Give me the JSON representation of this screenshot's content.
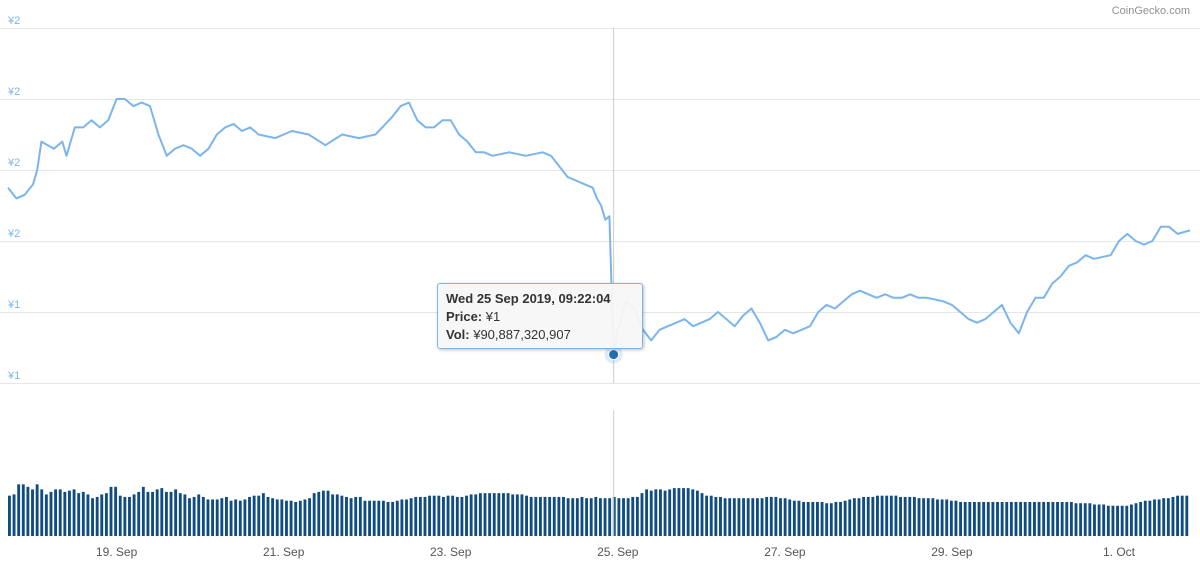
{
  "credit": "CoinGecko.com",
  "tooltip": {
    "date": "Wed 25 Sep 2019, 09:22:04",
    "price_label": "Price:",
    "price_value": "¥1",
    "vol_label": "Vol:",
    "vol_value": "¥90,887,320,907"
  },
  "colors": {
    "price_line": "#7cb5ec",
    "volume_bar": "#0f4c81",
    "axis_text": "#7cb5ec",
    "grid": "#e6e6e6",
    "crosshair": "#cccccc",
    "marker": "#1f6fb2"
  },
  "chart_data": {
    "type": "line",
    "y_tick_labels": [
      "¥2",
      "¥2",
      "¥2",
      "¥2",
      "¥1",
      "¥1"
    ],
    "x_tick_labels": [
      "19. Sep",
      "21. Sep",
      "23. Sep",
      "25. Sep",
      "27. Sep",
      "29. Sep",
      "1. Oct"
    ],
    "x_tick_days": [
      1.3,
      3.3,
      5.3,
      7.3,
      9.3,
      11.3,
      13.3
    ],
    "x_range_days": [
      0,
      14.15
    ],
    "price_ylim": [
      1.0,
      2.0
    ],
    "volume_ylim": [
      0,
      100
    ],
    "price": [
      [
        0.0,
        1.55
      ],
      [
        0.1,
        1.52
      ],
      [
        0.2,
        1.53
      ],
      [
        0.3,
        1.56
      ],
      [
        0.35,
        1.6
      ],
      [
        0.4,
        1.68
      ],
      [
        0.55,
        1.66
      ],
      [
        0.65,
        1.68
      ],
      [
        0.7,
        1.64
      ],
      [
        0.8,
        1.72
      ],
      [
        0.9,
        1.72
      ],
      [
        1.0,
        1.74
      ],
      [
        1.1,
        1.72
      ],
      [
        1.2,
        1.74
      ],
      [
        1.3,
        1.8
      ],
      [
        1.4,
        1.8
      ],
      [
        1.5,
        1.78
      ],
      [
        1.6,
        1.79
      ],
      [
        1.7,
        1.78
      ],
      [
        1.8,
        1.7
      ],
      [
        1.9,
        1.64
      ],
      [
        2.0,
        1.66
      ],
      [
        2.1,
        1.67
      ],
      [
        2.2,
        1.66
      ],
      [
        2.3,
        1.64
      ],
      [
        2.4,
        1.66
      ],
      [
        2.5,
        1.7
      ],
      [
        2.6,
        1.72
      ],
      [
        2.7,
        1.73
      ],
      [
        2.8,
        1.71
      ],
      [
        2.9,
        1.72
      ],
      [
        3.0,
        1.7
      ],
      [
        3.2,
        1.69
      ],
      [
        3.4,
        1.71
      ],
      [
        3.6,
        1.7
      ],
      [
        3.8,
        1.67
      ],
      [
        4.0,
        1.7
      ],
      [
        4.2,
        1.69
      ],
      [
        4.4,
        1.7
      ],
      [
        4.6,
        1.75
      ],
      [
        4.7,
        1.78
      ],
      [
        4.8,
        1.79
      ],
      [
        4.9,
        1.74
      ],
      [
        5.0,
        1.72
      ],
      [
        5.1,
        1.72
      ],
      [
        5.2,
        1.74
      ],
      [
        5.3,
        1.74
      ],
      [
        5.4,
        1.7
      ],
      [
        5.5,
        1.68
      ],
      [
        5.6,
        1.65
      ],
      [
        5.7,
        1.65
      ],
      [
        5.8,
        1.64
      ],
      [
        6.0,
        1.65
      ],
      [
        6.2,
        1.64
      ],
      [
        6.4,
        1.65
      ],
      [
        6.5,
        1.64
      ],
      [
        6.6,
        1.61
      ],
      [
        6.7,
        1.58
      ],
      [
        6.8,
        1.57
      ],
      [
        6.9,
        1.56
      ],
      [
        7.0,
        1.55
      ],
      [
        7.05,
        1.52
      ],
      [
        7.1,
        1.5
      ],
      [
        7.15,
        1.46
      ],
      [
        7.2,
        1.47
      ],
      [
        7.25,
        1.08
      ],
      [
        7.3,
        1.15
      ],
      [
        7.4,
        1.23
      ],
      [
        7.5,
        1.21
      ],
      [
        7.6,
        1.15
      ],
      [
        7.7,
        1.12
      ],
      [
        7.8,
        1.15
      ],
      [
        7.9,
        1.16
      ],
      [
        8.0,
        1.17
      ],
      [
        8.1,
        1.18
      ],
      [
        8.2,
        1.16
      ],
      [
        8.3,
        1.17
      ],
      [
        8.4,
        1.18
      ],
      [
        8.5,
        1.2
      ],
      [
        8.6,
        1.18
      ],
      [
        8.7,
        1.16
      ],
      [
        8.8,
        1.19
      ],
      [
        8.9,
        1.21
      ],
      [
        9.0,
        1.17
      ],
      [
        9.1,
        1.12
      ],
      [
        9.2,
        1.13
      ],
      [
        9.3,
        1.15
      ],
      [
        9.4,
        1.14
      ],
      [
        9.5,
        1.15
      ],
      [
        9.6,
        1.16
      ],
      [
        9.7,
        1.2
      ],
      [
        9.8,
        1.22
      ],
      [
        9.9,
        1.21
      ],
      [
        10.0,
        1.23
      ],
      [
        10.1,
        1.25
      ],
      [
        10.2,
        1.26
      ],
      [
        10.3,
        1.25
      ],
      [
        10.4,
        1.24
      ],
      [
        10.5,
        1.25
      ],
      [
        10.6,
        1.24
      ],
      [
        10.7,
        1.24
      ],
      [
        10.8,
        1.25
      ],
      [
        10.9,
        1.24
      ],
      [
        11.0,
        1.24
      ],
      [
        11.2,
        1.23
      ],
      [
        11.3,
        1.22
      ],
      [
        11.4,
        1.2
      ],
      [
        11.5,
        1.18
      ],
      [
        11.6,
        1.17
      ],
      [
        11.7,
        1.18
      ],
      [
        11.8,
        1.2
      ],
      [
        11.9,
        1.22
      ],
      [
        12.0,
        1.17
      ],
      [
        12.1,
        1.14
      ],
      [
        12.2,
        1.2
      ],
      [
        12.3,
        1.24
      ],
      [
        12.4,
        1.24
      ],
      [
        12.5,
        1.28
      ],
      [
        12.6,
        1.3
      ],
      [
        12.7,
        1.33
      ],
      [
        12.8,
        1.34
      ],
      [
        12.9,
        1.36
      ],
      [
        13.0,
        1.35
      ],
      [
        13.2,
        1.36
      ],
      [
        13.3,
        1.4
      ],
      [
        13.4,
        1.42
      ],
      [
        13.5,
        1.4
      ],
      [
        13.6,
        1.39
      ],
      [
        13.7,
        1.4
      ],
      [
        13.8,
        1.44
      ],
      [
        13.9,
        1.44
      ],
      [
        14.0,
        1.42
      ],
      [
        14.15,
        1.43
      ]
    ],
    "volume": [
      [
        0,
        32
      ],
      [
        1,
        33
      ],
      [
        2,
        41
      ],
      [
        3,
        41
      ],
      [
        4,
        39
      ],
      [
        5,
        37
      ],
      [
        6,
        41
      ],
      [
        7,
        37
      ],
      [
        8,
        33
      ],
      [
        9,
        35
      ],
      [
        10,
        37
      ],
      [
        11,
        37
      ],
      [
        12,
        35
      ],
      [
        13,
        36
      ],
      [
        14,
        37
      ],
      [
        15,
        34
      ],
      [
        16,
        35
      ],
      [
        17,
        33
      ],
      [
        18,
        30
      ],
      [
        19,
        31
      ],
      [
        20,
        33
      ],
      [
        21,
        34
      ],
      [
        22,
        39
      ],
      [
        23,
        39
      ],
      [
        24,
        32
      ],
      [
        25,
        31
      ],
      [
        26,
        31
      ],
      [
        27,
        33
      ],
      [
        28,
        35
      ],
      [
        29,
        39
      ],
      [
        30,
        35
      ],
      [
        31,
        35
      ],
      [
        32,
        37
      ],
      [
        33,
        38
      ],
      [
        34,
        35
      ],
      [
        35,
        35
      ],
      [
        36,
        37
      ],
      [
        37,
        34
      ],
      [
        38,
        33
      ],
      [
        39,
        30
      ],
      [
        40,
        31
      ],
      [
        41,
        33
      ],
      [
        42,
        31
      ],
      [
        43,
        29
      ],
      [
        44,
        29
      ],
      [
        45,
        29
      ],
      [
        46,
        30
      ],
      [
        47,
        31
      ],
      [
        48,
        28
      ],
      [
        49,
        29
      ],
      [
        50,
        28
      ],
      [
        51,
        29
      ],
      [
        52,
        31
      ],
      [
        53,
        32
      ],
      [
        54,
        32
      ],
      [
        55,
        34
      ],
      [
        56,
        31
      ],
      [
        57,
        30
      ],
      [
        58,
        29
      ],
      [
        59,
        29
      ],
      [
        60,
        28
      ],
      [
        61,
        28
      ],
      [
        62,
        27
      ],
      [
        63,
        28
      ],
      [
        64,
        29
      ],
      [
        65,
        30
      ],
      [
        66,
        34
      ],
      [
        67,
        35
      ],
      [
        68,
        36
      ],
      [
        69,
        36
      ],
      [
        70,
        33
      ],
      [
        71,
        33
      ],
      [
        72,
        32
      ],
      [
        73,
        31
      ],
      [
        74,
        30
      ],
      [
        75,
        31
      ],
      [
        76,
        31
      ],
      [
        77,
        28
      ],
      [
        78,
        28
      ],
      [
        79,
        28
      ],
      [
        80,
        28
      ],
      [
        81,
        28
      ],
      [
        82,
        27
      ],
      [
        83,
        27
      ],
      [
        84,
        28
      ],
      [
        85,
        29
      ],
      [
        86,
        29
      ],
      [
        87,
        30
      ],
      [
        88,
        31
      ],
      [
        89,
        31
      ],
      [
        90,
        31
      ],
      [
        91,
        32
      ],
      [
        92,
        32
      ],
      [
        93,
        32
      ],
      [
        94,
        31
      ],
      [
        95,
        32
      ],
      [
        96,
        32
      ],
      [
        97,
        31
      ],
      [
        98,
        31
      ],
      [
        99,
        32
      ],
      [
        100,
        33
      ],
      [
        101,
        33
      ],
      [
        102,
        34
      ],
      [
        103,
        34
      ],
      [
        104,
        34
      ],
      [
        105,
        34
      ],
      [
        106,
        34
      ],
      [
        107,
        34
      ],
      [
        108,
        34
      ],
      [
        109,
        33
      ],
      [
        110,
        33
      ],
      [
        111,
        33
      ],
      [
        112,
        32
      ],
      [
        113,
        31
      ],
      [
        114,
        31
      ],
      [
        115,
        31
      ],
      [
        116,
        31
      ],
      [
        117,
        31
      ],
      [
        118,
        31
      ],
      [
        119,
        31
      ],
      [
        120,
        31
      ],
      [
        121,
        30
      ],
      [
        122,
        30
      ],
      [
        123,
        30
      ],
      [
        124,
        31
      ],
      [
        125,
        30
      ],
      [
        126,
        30
      ],
      [
        127,
        31
      ],
      [
        128,
        30
      ],
      [
        129,
        30
      ],
      [
        130,
        30
      ],
      [
        131,
        31
      ],
      [
        132,
        30
      ],
      [
        133,
        30
      ],
      [
        134,
        30
      ],
      [
        135,
        31
      ],
      [
        136,
        31
      ],
      [
        137,
        34
      ],
      [
        138,
        37
      ],
      [
        139,
        36
      ],
      [
        140,
        37
      ],
      [
        141,
        37
      ],
      [
        142,
        36
      ],
      [
        143,
        37
      ],
      [
        144,
        38
      ],
      [
        145,
        38
      ],
      [
        146,
        38
      ],
      [
        147,
        38
      ],
      [
        148,
        37
      ],
      [
        149,
        36
      ],
      [
        150,
        34
      ],
      [
        151,
        32
      ],
      [
        152,
        32
      ],
      [
        153,
        31
      ],
      [
        154,
        31
      ],
      [
        155,
        30
      ],
      [
        156,
        30
      ],
      [
        157,
        30
      ],
      [
        158,
        30
      ],
      [
        159,
        30
      ],
      [
        160,
        30
      ],
      [
        161,
        30
      ],
      [
        162,
        30
      ],
      [
        163,
        30
      ],
      [
        164,
        31
      ],
      [
        165,
        31
      ],
      [
        166,
        31
      ],
      [
        167,
        30
      ],
      [
        168,
        30
      ],
      [
        169,
        29
      ],
      [
        170,
        28
      ],
      [
        171,
        28
      ],
      [
        172,
        27
      ],
      [
        173,
        27
      ],
      [
        174,
        27
      ],
      [
        175,
        27
      ],
      [
        176,
        27
      ],
      [
        177,
        26
      ],
      [
        178,
        26
      ],
      [
        179,
        27
      ],
      [
        180,
        27
      ],
      [
        181,
        28
      ],
      [
        182,
        29
      ],
      [
        183,
        30
      ],
      [
        184,
        30
      ],
      [
        185,
        31
      ],
      [
        186,
        31
      ],
      [
        187,
        31
      ],
      [
        188,
        32
      ],
      [
        189,
        32
      ],
      [
        190,
        32
      ],
      [
        191,
        32
      ],
      [
        192,
        32
      ],
      [
        193,
        31
      ],
      [
        194,
        31
      ],
      [
        195,
        31
      ],
      [
        196,
        31
      ],
      [
        197,
        30
      ],
      [
        198,
        30
      ],
      [
        199,
        30
      ],
      [
        200,
        30
      ],
      [
        201,
        29
      ],
      [
        202,
        29
      ],
      [
        203,
        29
      ],
      [
        204,
        28
      ],
      [
        205,
        28
      ],
      [
        206,
        27
      ],
      [
        207,
        27
      ],
      [
        208,
        27
      ],
      [
        209,
        27
      ],
      [
        210,
        27
      ],
      [
        211,
        27
      ],
      [
        212,
        27
      ],
      [
        213,
        27
      ],
      [
        214,
        27
      ],
      [
        215,
        27
      ],
      [
        216,
        27
      ],
      [
        217,
        27
      ],
      [
        218,
        27
      ],
      [
        219,
        27
      ],
      [
        220,
        27
      ],
      [
        221,
        27
      ],
      [
        222,
        27
      ],
      [
        223,
        27
      ],
      [
        224,
        27
      ],
      [
        225,
        27
      ],
      [
        226,
        27
      ],
      [
        227,
        27
      ],
      [
        228,
        27
      ],
      [
        229,
        27
      ],
      [
        230,
        27
      ],
      [
        231,
        26
      ],
      [
        232,
        26
      ],
      [
        233,
        26
      ],
      [
        234,
        26
      ],
      [
        235,
        25
      ],
      [
        236,
        25
      ],
      [
        237,
        25
      ],
      [
        238,
        24
      ],
      [
        239,
        24
      ],
      [
        240,
        24
      ],
      [
        241,
        24
      ],
      [
        242,
        24
      ],
      [
        243,
        25
      ],
      [
        244,
        26
      ],
      [
        245,
        27
      ],
      [
        246,
        28
      ],
      [
        247,
        28
      ],
      [
        248,
        29
      ],
      [
        249,
        29
      ],
      [
        250,
        30
      ],
      [
        251,
        30
      ],
      [
        252,
        31
      ],
      [
        253,
        32
      ],
      [
        254,
        32
      ],
      [
        255,
        32
      ]
    ],
    "hover": {
      "day": 7.25,
      "price": 1.08
    }
  }
}
